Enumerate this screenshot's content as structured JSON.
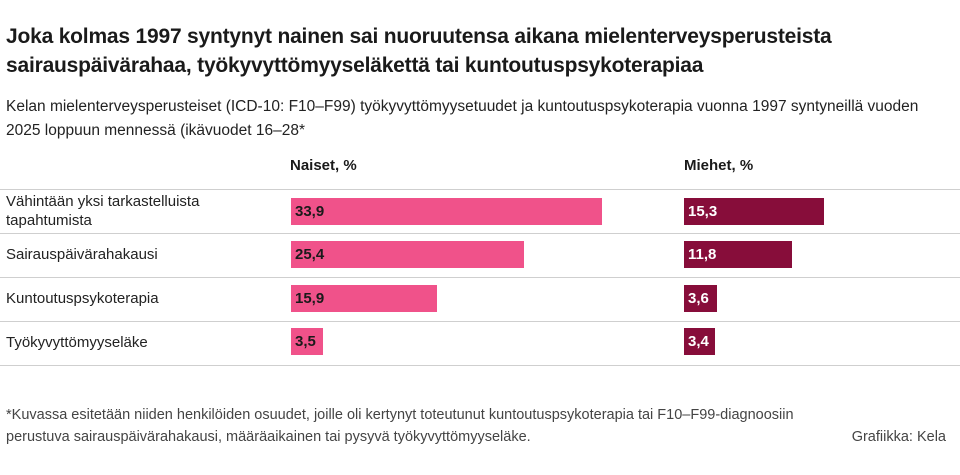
{
  "chart_data": {
    "type": "bar",
    "title": "Joka kolmas 1997 syntynyt nainen sai nuoruutensa aikana mielenterveysperusteista sairauspäivärahaa, työkyvyttömyyseläkettä tai kuntoutuspsykoterapiaa",
    "subtitle": "Kelan mielenterveysperusteiset (ICD-10: F10–F99) työkyvyttömyysetuudet ja kuntoutuspsykoterapia vuonna 1997 syntyneillä vuoden 2025 loppuun mennessä (ikävuodet 16–28*",
    "categories": [
      "Vähintään yksi tarkastelluista tapahtumista",
      "Sairauspäivärahakausi",
      "Kuntoutuspsykoterapia",
      "Työkyvyttömyyseläke"
    ],
    "series": [
      {
        "name": "Naiset, %",
        "values": [
          33.9,
          25.4,
          15.9,
          3.5
        ],
        "labels": [
          "33,9",
          "25,4",
          "15,9",
          "3,5"
        ],
        "color": "#f0528a",
        "label_color": "#1a1a1a"
      },
      {
        "name": "Miehet, %",
        "values": [
          15.3,
          11.8,
          3.6,
          3.4
        ],
        "labels": [
          "15,3",
          "11,8",
          "3,6",
          "3,4"
        ],
        "color": "#870d3a",
        "label_color": "#ffffff"
      }
    ],
    "note": "*Kuvassa esitetään niiden henkilöiden osuudet, joille oli kertynyt toteutunut kuntoutuspsykoterapia tai F10–F99-diagnoosiin perustuva sairauspäivärahakausi, määräaikainen tai pysyvä työkyvyttömyyseläke.",
    "credit": "Grafiikka: Kela"
  }
}
